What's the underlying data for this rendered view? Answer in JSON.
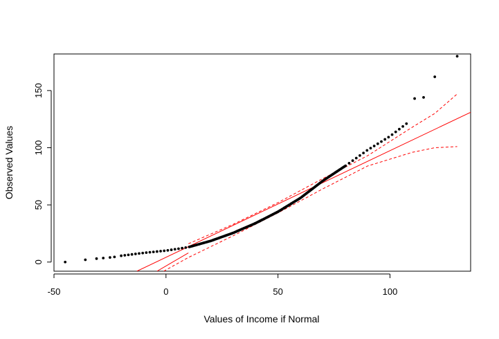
{
  "chart_data": {
    "type": "scatter",
    "title": "",
    "xlabel": "Values of Income if Normal",
    "ylabel": "Observed Values",
    "xlim": [
      -50,
      136
    ],
    "ylim": [
      -8,
      182
    ],
    "xticks": [
      -50,
      0,
      50,
      100
    ],
    "yticks": [
      0,
      50,
      100,
      150
    ],
    "xtick_labels": [
      "-50",
      "0",
      "50",
      "100"
    ],
    "ytick_labels": [
      "0",
      "50",
      "100",
      "150"
    ],
    "grid": false,
    "legend": "none",
    "colors": {
      "points": "#000000",
      "reference_line": "#ff0000",
      "confidence_band": "#ff0000"
    },
    "points_curve": {
      "x_range": [
        -45,
        130
      ],
      "quantile_anchors": [
        [
          -45,
          0
        ],
        [
          -36,
          2
        ],
        [
          -30,
          3.5
        ],
        [
          -20,
          5.5
        ],
        [
          -10,
          8
        ],
        [
          0,
          10
        ],
        [
          10,
          13
        ],
        [
          20,
          18.5
        ],
        [
          30,
          25.5
        ],
        [
          40,
          34
        ],
        [
          50,
          44
        ],
        [
          60,
          56
        ],
        [
          70,
          71
        ],
        [
          80,
          84
        ],
        [
          90,
          98
        ],
        [
          100,
          110
        ],
        [
          110,
          125
        ],
        [
          114,
          143.5
        ],
        [
          120,
          162
        ],
        [
          130,
          180
        ]
      ],
      "tail_points": [
        [
          -45,
          0
        ],
        [
          -36,
          2
        ],
        [
          -31,
          3
        ],
        [
          -28,
          3.5
        ],
        [
          -25,
          4
        ],
        [
          -23,
          4.5
        ],
        [
          111,
          143
        ],
        [
          115,
          144
        ],
        [
          120,
          162
        ],
        [
          130,
          180
        ]
      ]
    },
    "reference_line": {
      "x": [
        -13,
        136
      ],
      "y": [
        -8,
        131
      ]
    },
    "confidence_band_upper": {
      "x": [
        10,
        30,
        50,
        70,
        90,
        110,
        120,
        130
      ],
      "y": [
        16,
        33,
        52,
        73,
        93,
        118,
        130,
        147
      ]
    },
    "confidence_band_lower": {
      "x": [
        -1,
        10,
        30,
        50,
        70,
        90,
        110,
        120,
        130
      ],
      "y": [
        -8,
        4,
        23,
        43,
        64,
        84,
        96,
        100,
        101
      ]
    },
    "confidence_band_lower_inner": {
      "x": [
        -4,
        10
      ],
      "y": [
        -8,
        8
      ]
    }
  }
}
